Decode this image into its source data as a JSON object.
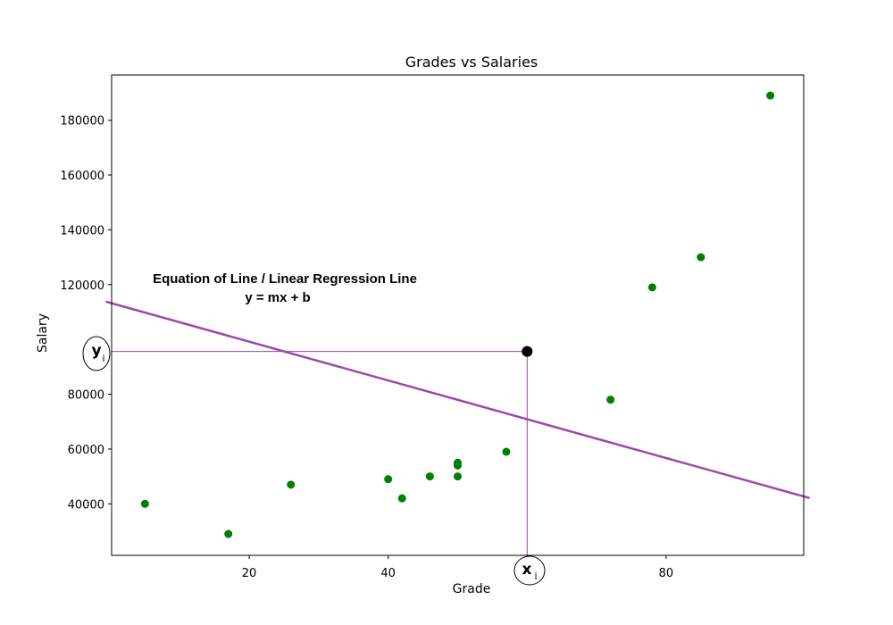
{
  "chart_data": {
    "type": "scatter",
    "title": "Grades vs Salaries",
    "xlabel": "Grade",
    "ylabel": "Salary",
    "xlim": [
      0.2,
      99.8
    ],
    "ylim": [
      21200,
      196500
    ],
    "x_ticks": [
      20,
      40,
      60,
      80
    ],
    "x_tick_labels": [
      "20",
      "40",
      "",
      "80"
    ],
    "y_ticks": [
      40000,
      60000,
      80000,
      120000,
      140000,
      160000,
      180000
    ],
    "y_tick_labels": [
      "40000",
      "60000",
      "80000",
      "120000",
      "140000",
      "160000",
      "180000"
    ],
    "grid": false,
    "points": {
      "color": "#008000",
      "x": [
        5,
        17,
        26,
        40,
        42,
        46,
        50,
        50,
        50,
        57,
        72,
        78,
        85,
        95
      ],
      "y": [
        40000,
        29000,
        47000,
        49000,
        42000,
        50000,
        50000,
        54000,
        55000,
        59000,
        78000,
        119000,
        130000,
        189000
      ]
    },
    "regression_line": {
      "color": "#9b4aa8",
      "x": [
        0,
        100
      ],
      "y": [
        113800,
        42100
      ]
    },
    "highlight_point": {
      "x": 60,
      "y": 95600,
      "color": "#000000"
    },
    "annotations": {
      "line_title": "Equation of Line / Linear Regression Line",
      "equation": "y = mx + b",
      "y_marker": "y",
      "y_marker_sub": "i",
      "x_marker": "x",
      "x_marker_sub": "i",
      "color": "#9b4aa8"
    }
  }
}
